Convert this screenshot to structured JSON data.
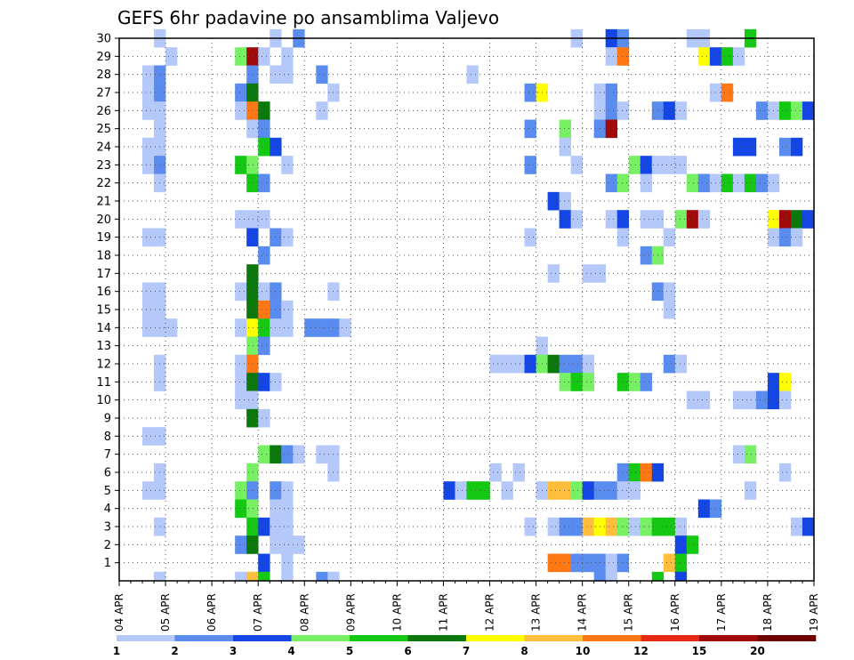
{
  "chart_data": {
    "type": "heatmap",
    "title": "GEFS 6hr padavine po ansamblima Valjevo",
    "y_ticks": [
      1,
      2,
      3,
      4,
      5,
      6,
      7,
      8,
      9,
      10,
      11,
      12,
      13,
      14,
      15,
      16,
      17,
      18,
      19,
      20,
      21,
      22,
      23,
      24,
      25,
      26,
      27,
      28,
      29,
      30
    ],
    "y_range": [
      0,
      30
    ],
    "x_ticks": [
      "04 APR",
      "05 APR",
      "06 APR",
      "07 APR",
      "08 APR",
      "09 APR",
      "10 APR",
      "11 APR",
      "12 APR",
      "13 APR",
      "14 APR",
      "15 APR",
      "16 APR",
      "17 APR",
      "18 APR",
      "19 APR"
    ],
    "time_steps": 60,
    "grid": "dotted",
    "legend_placement": "bottom",
    "legend_labels": [
      "1",
      "2",
      "3",
      "4",
      "5",
      "6",
      "7",
      "8",
      "10",
      "12",
      "15",
      "20"
    ],
    "legend_colors": [
      "#b4c8fa",
      "#5a8cf0",
      "#1446e6",
      "#78f064",
      "#14c814",
      "#0a780a",
      "#ffff00",
      "#ffbe3c",
      "#ff7814",
      "#e62814",
      "#a00a0a",
      "#6e0000"
    ],
    "cells": [
      [
        30,
        3,
        1
      ],
      [
        30,
        13,
        1
      ],
      [
        30,
        15,
        2
      ],
      [
        30,
        39,
        1
      ],
      [
        30,
        42,
        3
      ],
      [
        30,
        43,
        2
      ],
      [
        30,
        49,
        1
      ],
      [
        30,
        50,
        1
      ],
      [
        30,
        54,
        5
      ],
      [
        29,
        4,
        1
      ],
      [
        29,
        10,
        4
      ],
      [
        29,
        11,
        11
      ],
      [
        29,
        12,
        1
      ],
      [
        29,
        14,
        1
      ],
      [
        29,
        42,
        1
      ],
      [
        29,
        43,
        9
      ],
      [
        29,
        50,
        7
      ],
      [
        29,
        51,
        3
      ],
      [
        29,
        52,
        5
      ],
      [
        29,
        53,
        1
      ],
      [
        28,
        2,
        1
      ],
      [
        28,
        3,
        2
      ],
      [
        28,
        11,
        2
      ],
      [
        28,
        13,
        1
      ],
      [
        28,
        14,
        1
      ],
      [
        28,
        17,
        2
      ],
      [
        28,
        30,
        1
      ],
      [
        27,
        2,
        1
      ],
      [
        27,
        3,
        2
      ],
      [
        27,
        10,
        2
      ],
      [
        27,
        11,
        6
      ],
      [
        27,
        18,
        1
      ],
      [
        27,
        35,
        2
      ],
      [
        27,
        36,
        7
      ],
      [
        27,
        41,
        1
      ],
      [
        27,
        42,
        2
      ],
      [
        27,
        51,
        1
      ],
      [
        27,
        52,
        9
      ],
      [
        26,
        2,
        1
      ],
      [
        26,
        3,
        1
      ],
      [
        26,
        10,
        1
      ],
      [
        26,
        11,
        9
      ],
      [
        26,
        12,
        6
      ],
      [
        26,
        17,
        1
      ],
      [
        26,
        41,
        1
      ],
      [
        26,
        42,
        2
      ],
      [
        26,
        43,
        1
      ],
      [
        26,
        46,
        2
      ],
      [
        26,
        47,
        3
      ],
      [
        26,
        48,
        1
      ],
      [
        26,
        55,
        2
      ],
      [
        26,
        56,
        1
      ],
      [
        26,
        57,
        5
      ],
      [
        26,
        58,
        4
      ],
      [
        26,
        59,
        3
      ],
      [
        25,
        3,
        1
      ],
      [
        25,
        11,
        1
      ],
      [
        25,
        12,
        2
      ],
      [
        25,
        35,
        2
      ],
      [
        25,
        38,
        4
      ],
      [
        25,
        41,
        2
      ],
      [
        25,
        42,
        11
      ],
      [
        24,
        2,
        1
      ],
      [
        24,
        3,
        1
      ],
      [
        24,
        12,
        5
      ],
      [
        24,
        13,
        3
      ],
      [
        24,
        38,
        1
      ],
      [
        24,
        53,
        3
      ],
      [
        24,
        54,
        3
      ],
      [
        24,
        57,
        2
      ],
      [
        24,
        58,
        3
      ],
      [
        23,
        2,
        1
      ],
      [
        23,
        3,
        2
      ],
      [
        23,
        10,
        5
      ],
      [
        23,
        11,
        4
      ],
      [
        23,
        14,
        1
      ],
      [
        23,
        35,
        2
      ],
      [
        23,
        39,
        1
      ],
      [
        23,
        44,
        4
      ],
      [
        23,
        45,
        3
      ],
      [
        23,
        46,
        1
      ],
      [
        23,
        47,
        1
      ],
      [
        23,
        48,
        1
      ],
      [
        22,
        3,
        1
      ],
      [
        22,
        11,
        5
      ],
      [
        22,
        12,
        2
      ],
      [
        22,
        42,
        2
      ],
      [
        22,
        43,
        4
      ],
      [
        22,
        45,
        1
      ],
      [
        22,
        49,
        4
      ],
      [
        22,
        50,
        2
      ],
      [
        22,
        51,
        1
      ],
      [
        22,
        52,
        5
      ],
      [
        22,
        53,
        1
      ],
      [
        22,
        54,
        5
      ],
      [
        22,
        55,
        2
      ],
      [
        22,
        56,
        1
      ],
      [
        21,
        37,
        3
      ],
      [
        21,
        38,
        1
      ],
      [
        20,
        10,
        1
      ],
      [
        20,
        11,
        1
      ],
      [
        20,
        12,
        1
      ],
      [
        20,
        38,
        3
      ],
      [
        20,
        39,
        1
      ],
      [
        20,
        42,
        1
      ],
      [
        20,
        43,
        3
      ],
      [
        20,
        45,
        1
      ],
      [
        20,
        46,
        1
      ],
      [
        20,
        48,
        4
      ],
      [
        20,
        49,
        11
      ],
      [
        20,
        50,
        1
      ],
      [
        20,
        56,
        7
      ],
      [
        20,
        57,
        11
      ],
      [
        20,
        58,
        6
      ],
      [
        20,
        59,
        3
      ],
      [
        19,
        2,
        1
      ],
      [
        19,
        3,
        1
      ],
      [
        19,
        11,
        3
      ],
      [
        19,
        13,
        2
      ],
      [
        19,
        14,
        1
      ],
      [
        19,
        35,
        1
      ],
      [
        19,
        43,
        1
      ],
      [
        19,
        47,
        1
      ],
      [
        19,
        56,
        1
      ],
      [
        19,
        57,
        2
      ],
      [
        19,
        58,
        1
      ],
      [
        18,
        12,
        2
      ],
      [
        18,
        45,
        2
      ],
      [
        18,
        46,
        4
      ],
      [
        17,
        11,
        6
      ],
      [
        17,
        37,
        1
      ],
      [
        17,
        40,
        1
      ],
      [
        17,
        41,
        1
      ],
      [
        16,
        2,
        1
      ],
      [
        16,
        3,
        1
      ],
      [
        16,
        10,
        1
      ],
      [
        16,
        11,
        6
      ],
      [
        16,
        12,
        1
      ],
      [
        16,
        13,
        2
      ],
      [
        16,
        18,
        1
      ],
      [
        16,
        46,
        2
      ],
      [
        16,
        47,
        1
      ],
      [
        15,
        2,
        1
      ],
      [
        15,
        3,
        1
      ],
      [
        15,
        11,
        6
      ],
      [
        15,
        12,
        9
      ],
      [
        15,
        13,
        2
      ],
      [
        15,
        14,
        1
      ],
      [
        15,
        47,
        1
      ],
      [
        14,
        2,
        1
      ],
      [
        14,
        3,
        1
      ],
      [
        14,
        4,
        1
      ],
      [
        14,
        10,
        1
      ],
      [
        14,
        11,
        7
      ],
      [
        14,
        12,
        5
      ],
      [
        14,
        13,
        1
      ],
      [
        14,
        14,
        1
      ],
      [
        14,
        16,
        2
      ],
      [
        14,
        17,
        2
      ],
      [
        14,
        18,
        2
      ],
      [
        14,
        19,
        1
      ],
      [
        13,
        11,
        4
      ],
      [
        13,
        12,
        2
      ],
      [
        13,
        36,
        1
      ],
      [
        12,
        3,
        1
      ],
      [
        12,
        10,
        1
      ],
      [
        12,
        11,
        9
      ],
      [
        12,
        32,
        1
      ],
      [
        12,
        33,
        1
      ],
      [
        12,
        34,
        1
      ],
      [
        12,
        35,
        3
      ],
      [
        12,
        36,
        4
      ],
      [
        12,
        37,
        6
      ],
      [
        12,
        38,
        2
      ],
      [
        12,
        39,
        2
      ],
      [
        12,
        40,
        1
      ],
      [
        12,
        47,
        2
      ],
      [
        12,
        48,
        1
      ],
      [
        11,
        3,
        1
      ],
      [
        11,
        10,
        1
      ],
      [
        11,
        11,
        6
      ],
      [
        11,
        12,
        3
      ],
      [
        11,
        13,
        1
      ],
      [
        11,
        38,
        4
      ],
      [
        11,
        39,
        5
      ],
      [
        11,
        40,
        4
      ],
      [
        11,
        43,
        5
      ],
      [
        11,
        44,
        4
      ],
      [
        11,
        45,
        2
      ],
      [
        11,
        56,
        3
      ],
      [
        11,
        57,
        7
      ],
      [
        10,
        10,
        1
      ],
      [
        10,
        11,
        1
      ],
      [
        10,
        49,
        1
      ],
      [
        10,
        50,
        1
      ],
      [
        10,
        53,
        1
      ],
      [
        10,
        54,
        1
      ],
      [
        10,
        55,
        2
      ],
      [
        10,
        56,
        3
      ],
      [
        10,
        57,
        1
      ],
      [
        9,
        11,
        6
      ],
      [
        9,
        12,
        1
      ],
      [
        8,
        2,
        1
      ],
      [
        8,
        3,
        1
      ],
      [
        7,
        12,
        4
      ],
      [
        7,
        13,
        6
      ],
      [
        7,
        14,
        2
      ],
      [
        7,
        15,
        1
      ],
      [
        7,
        17,
        1
      ],
      [
        7,
        18,
        1
      ],
      [
        7,
        53,
        1
      ],
      [
        7,
        54,
        4
      ],
      [
        6,
        3,
        1
      ],
      [
        6,
        11,
        4
      ],
      [
        6,
        18,
        1
      ],
      [
        6,
        32,
        1
      ],
      [
        6,
        34,
        1
      ],
      [
        6,
        43,
        2
      ],
      [
        6,
        44,
        5
      ],
      [
        6,
        45,
        9
      ],
      [
        6,
        46,
        3
      ],
      [
        6,
        57,
        1
      ],
      [
        5,
        2,
        1
      ],
      [
        5,
        3,
        1
      ],
      [
        5,
        10,
        4
      ],
      [
        5,
        11,
        2
      ],
      [
        5,
        13,
        2
      ],
      [
        5,
        14,
        1
      ],
      [
        5,
        28,
        3
      ],
      [
        5,
        29,
        1
      ],
      [
        5,
        30,
        5
      ],
      [
        5,
        31,
        5
      ],
      [
        5,
        33,
        1
      ],
      [
        5,
        36,
        1
      ],
      [
        5,
        37,
        8
      ],
      [
        5,
        38,
        8
      ],
      [
        5,
        39,
        4
      ],
      [
        5,
        40,
        3
      ],
      [
        5,
        41,
        2
      ],
      [
        5,
        42,
        2
      ],
      [
        5,
        43,
        1
      ],
      [
        5,
        44,
        1
      ],
      [
        5,
        54,
        1
      ],
      [
        4,
        10,
        5
      ],
      [
        4,
        11,
        4
      ],
      [
        4,
        13,
        1
      ],
      [
        4,
        14,
        1
      ],
      [
        4,
        50,
        3
      ],
      [
        4,
        51,
        2
      ],
      [
        3,
        3,
        1
      ],
      [
        3,
        11,
        5
      ],
      [
        3,
        12,
        3
      ],
      [
        3,
        13,
        1
      ],
      [
        3,
        14,
        1
      ],
      [
        3,
        35,
        1
      ],
      [
        3,
        37,
        1
      ],
      [
        3,
        38,
        2
      ],
      [
        3,
        39,
        2
      ],
      [
        3,
        40,
        8
      ],
      [
        3,
        41,
        7
      ],
      [
        3,
        42,
        8
      ],
      [
        3,
        43,
        4
      ],
      [
        3,
        44,
        1
      ],
      [
        3,
        45,
        4
      ],
      [
        3,
        46,
        5
      ],
      [
        3,
        47,
        5
      ],
      [
        3,
        48,
        1
      ],
      [
        3,
        58,
        1
      ],
      [
        3,
        59,
        3
      ],
      [
        2,
        10,
        2
      ],
      [
        2,
        11,
        6
      ],
      [
        2,
        13,
        1
      ],
      [
        2,
        14,
        1
      ],
      [
        2,
        15,
        1
      ],
      [
        2,
        48,
        3
      ],
      [
        2,
        49,
        5
      ],
      [
        1,
        12,
        3
      ],
      [
        1,
        14,
        1
      ],
      [
        1,
        37,
        9
      ],
      [
        1,
        38,
        9
      ],
      [
        1,
        39,
        2
      ],
      [
        1,
        40,
        2
      ],
      [
        1,
        41,
        2
      ],
      [
        1,
        42,
        1
      ],
      [
        1,
        43,
        2
      ],
      [
        1,
        47,
        8
      ],
      [
        1,
        48,
        5
      ],
      [
        0,
        3,
        1
      ],
      [
        0,
        10,
        1
      ],
      [
        0,
        11,
        8
      ],
      [
        0,
        12,
        5
      ],
      [
        0,
        14,
        1
      ],
      [
        0,
        17,
        2
      ],
      [
        0,
        18,
        1
      ],
      [
        0,
        41,
        2
      ],
      [
        0,
        42,
        1
      ],
      [
        0,
        46,
        5
      ],
      [
        0,
        48,
        3
      ]
    ]
  }
}
